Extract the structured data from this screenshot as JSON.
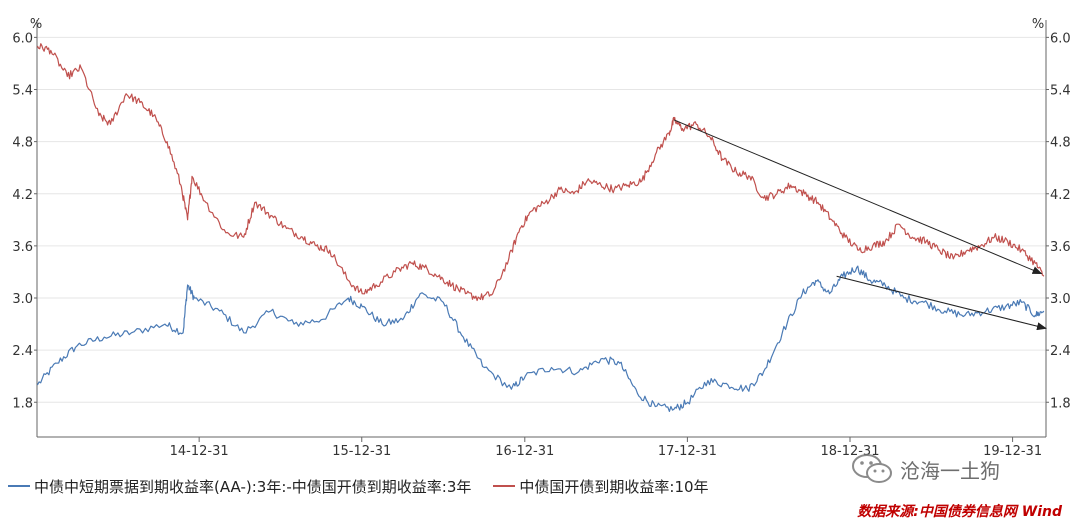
{
  "chart_data": {
    "type": "line",
    "y_unit_left": "%",
    "y_unit_right": "%",
    "ylim": [
      1.4,
      6.2
    ],
    "y_ticks": [
      "6.0",
      "5.4",
      "4.8",
      "4.2",
      "3.6",
      "3.0",
      "2.4",
      "1.8"
    ],
    "x_ticks": [
      "14-12-31",
      "15-12-31",
      "16-12-31",
      "17-12-31",
      "18-12-31",
      "19-12-31"
    ],
    "x_range": [
      "2014-01-01",
      "2020-03-15"
    ],
    "grid": true,
    "legend_position": "bottom-left",
    "series": [
      {
        "name": "中债中短期票据到期收益率(AA-):3年:-中债国开债到期收益率:3年",
        "color": "#4a7ab5",
        "points": [
          [
            "2014-01-02",
            2.0
          ],
          [
            "2014-02-15",
            2.25
          ],
          [
            "2014-04-01",
            2.45
          ],
          [
            "2014-06-01",
            2.55
          ],
          [
            "2014-08-01",
            2.6
          ],
          [
            "2014-10-15",
            2.7
          ],
          [
            "2014-11-25",
            2.6
          ],
          [
            "2014-12-05",
            3.15
          ],
          [
            "2014-12-20",
            3.0
          ],
          [
            "2015-02-15",
            2.85
          ],
          [
            "2015-04-10",
            2.6
          ],
          [
            "2015-06-10",
            2.85
          ],
          [
            "2015-08-01",
            2.7
          ],
          [
            "2015-10-01",
            2.75
          ],
          [
            "2015-12-01",
            3.0
          ],
          [
            "2016-01-01",
            2.9
          ],
          [
            "2016-02-15",
            2.7
          ],
          [
            "2016-04-01",
            2.75
          ],
          [
            "2016-05-10",
            3.05
          ],
          [
            "2016-07-01",
            2.95
          ],
          [
            "2016-08-15",
            2.55
          ],
          [
            "2016-10-01",
            2.2
          ],
          [
            "2016-12-01",
            1.95
          ],
          [
            "2017-01-01",
            2.1
          ],
          [
            "2017-03-01",
            2.2
          ],
          [
            "2017-05-01",
            2.15
          ],
          [
            "2017-06-20",
            2.3
          ],
          [
            "2017-08-01",
            2.25
          ],
          [
            "2017-09-10",
            1.9
          ],
          [
            "2017-10-20",
            1.75
          ],
          [
            "2017-12-01",
            1.72
          ],
          [
            "2018-01-01",
            1.8
          ],
          [
            "2018-02-15",
            2.05
          ],
          [
            "2018-04-01",
            2.0
          ],
          [
            "2018-05-15",
            1.95
          ],
          [
            "2018-06-20",
            2.15
          ],
          [
            "2018-08-01",
            2.6
          ],
          [
            "2018-09-15",
            3.05
          ],
          [
            "2018-10-15",
            3.2
          ],
          [
            "2018-11-15",
            3.05
          ],
          [
            "2018-12-15",
            3.25
          ],
          [
            "2019-01-15",
            3.35
          ],
          [
            "2019-02-15",
            3.2
          ],
          [
            "2019-03-20",
            3.15
          ],
          [
            "2019-05-01",
            3.0
          ],
          [
            "2019-06-15",
            2.95
          ],
          [
            "2019-08-01",
            2.85
          ],
          [
            "2019-09-15",
            2.8
          ],
          [
            "2019-11-01",
            2.85
          ],
          [
            "2019-12-15",
            2.9
          ],
          [
            "2020-01-20",
            2.95
          ],
          [
            "2020-02-20",
            2.8
          ],
          [
            "2020-03-10",
            2.85
          ]
        ]
      },
      {
        "name": "中债国开债到期收益率:10年",
        "color": "#c0504d",
        "points": [
          [
            "2014-01-02",
            5.9
          ],
          [
            "2014-02-01",
            5.85
          ],
          [
            "2014-03-10",
            5.55
          ],
          [
            "2014-04-10",
            5.65
          ],
          [
            "2014-05-20",
            5.1
          ],
          [
            "2014-06-15",
            5.0
          ],
          [
            "2014-07-20",
            5.35
          ],
          [
            "2014-08-20",
            5.25
          ],
          [
            "2014-09-20",
            5.1
          ],
          [
            "2014-10-20",
            4.8
          ],
          [
            "2014-11-20",
            4.3
          ],
          [
            "2014-12-05",
            3.9
          ],
          [
            "2014-12-15",
            4.4
          ],
          [
            "2015-01-15",
            4.1
          ],
          [
            "2015-03-01",
            3.75
          ],
          [
            "2015-04-10",
            3.7
          ],
          [
            "2015-05-05",
            4.1
          ],
          [
            "2015-06-10",
            3.95
          ],
          [
            "2015-07-15",
            3.8
          ],
          [
            "2015-08-20",
            3.7
          ],
          [
            "2015-09-20",
            3.6
          ],
          [
            "2015-10-20",
            3.55
          ],
          [
            "2015-12-01",
            3.2
          ],
          [
            "2016-01-01",
            3.05
          ],
          [
            "2016-02-01",
            3.15
          ],
          [
            "2016-03-15",
            3.3
          ],
          [
            "2016-04-20",
            3.4
          ],
          [
            "2016-05-20",
            3.35
          ],
          [
            "2016-06-20",
            3.25
          ],
          [
            "2016-07-20",
            3.15
          ],
          [
            "2016-08-20",
            3.05
          ],
          [
            "2016-09-20",
            3.0
          ],
          [
            "2016-10-20",
            3.05
          ],
          [
            "2016-11-25",
            3.45
          ],
          [
            "2016-12-20",
            3.8
          ],
          [
            "2017-01-15",
            4.0
          ],
          [
            "2017-02-15",
            4.1
          ],
          [
            "2017-03-20",
            4.25
          ],
          [
            "2017-04-20",
            4.2
          ],
          [
            "2017-05-20",
            4.35
          ],
          [
            "2017-06-20",
            4.3
          ],
          [
            "2017-07-20",
            4.25
          ],
          [
            "2017-08-20",
            4.3
          ],
          [
            "2017-09-20",
            4.35
          ],
          [
            "2017-10-20",
            4.65
          ],
          [
            "2017-11-20",
            4.9
          ],
          [
            "2017-12-01",
            5.05
          ],
          [
            "2017-12-20",
            4.95
          ],
          [
            "2018-01-20",
            5.0
          ],
          [
            "2018-02-20",
            4.85
          ],
          [
            "2018-03-20",
            4.6
          ],
          [
            "2018-04-20",
            4.45
          ],
          [
            "2018-05-20",
            4.4
          ],
          [
            "2018-06-20",
            4.15
          ],
          [
            "2018-07-20",
            4.2
          ],
          [
            "2018-08-20",
            4.3
          ],
          [
            "2018-09-20",
            4.2
          ],
          [
            "2018-10-20",
            4.1
          ],
          [
            "2018-11-20",
            3.9
          ],
          [
            "2018-12-20",
            3.7
          ],
          [
            "2019-01-20",
            3.55
          ],
          [
            "2019-02-20",
            3.6
          ],
          [
            "2019-03-20",
            3.65
          ],
          [
            "2019-04-20",
            3.85
          ],
          [
            "2019-05-20",
            3.7
          ],
          [
            "2019-06-20",
            3.65
          ],
          [
            "2019-07-20",
            3.55
          ],
          [
            "2019-08-20",
            3.45
          ],
          [
            "2019-09-20",
            3.55
          ],
          [
            "2019-10-20",
            3.6
          ],
          [
            "2019-11-20",
            3.7
          ],
          [
            "2019-12-20",
            3.65
          ],
          [
            "2020-01-20",
            3.55
          ],
          [
            "2020-02-20",
            3.4
          ],
          [
            "2020-03-10",
            3.25
          ]
        ]
      }
    ],
    "annotations": [
      {
        "type": "arrow",
        "color": "#222222",
        "from": [
          "2017-12-01",
          5.05
        ],
        "to": [
          "2020-03-05",
          3.28
        ]
      },
      {
        "type": "arrow",
        "color": "#222222",
        "from": [
          "2018-12-01",
          3.25
        ],
        "to": [
          "2020-03-15",
          2.65
        ]
      }
    ]
  },
  "watermark_text": "沧海一土狗",
  "source_text": "数据来源:中国债券信息网 Wind"
}
